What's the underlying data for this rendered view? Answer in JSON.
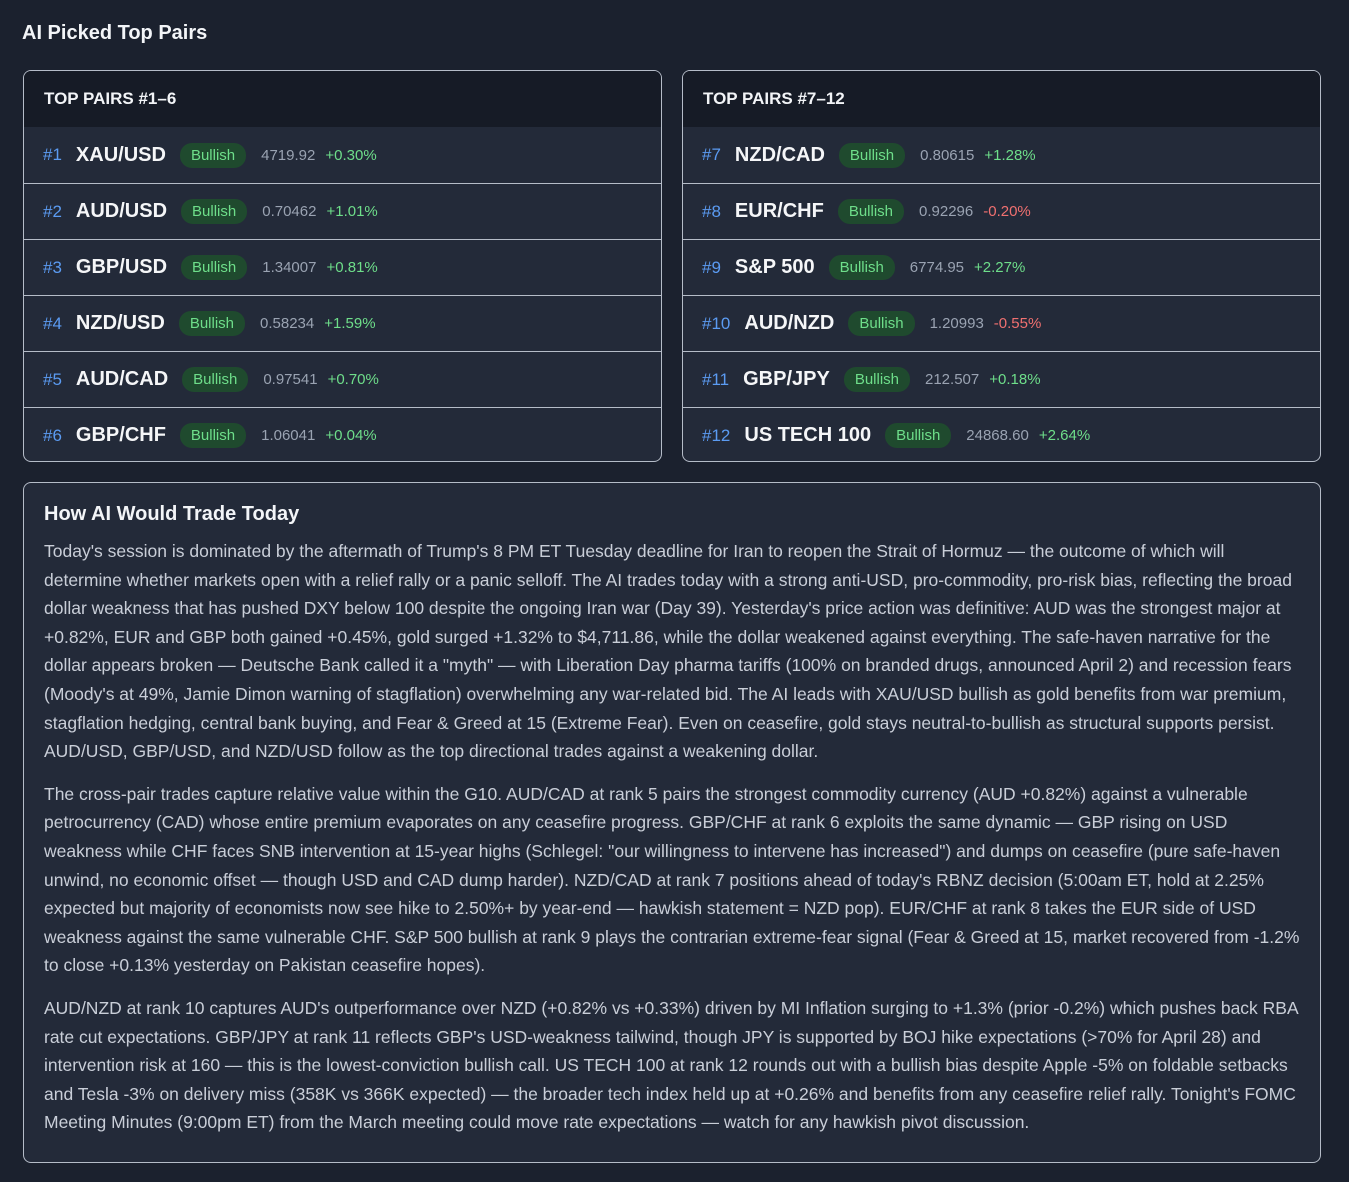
{
  "page_title": "AI Picked Top Pairs",
  "panels": [
    {
      "title": "TOP PAIRS #1–6",
      "rows": [
        {
          "rank": "#1",
          "pair": "XAU/USD",
          "bias": "Bullish",
          "price": "4719.92",
          "change": "+0.30%",
          "direction": "up"
        },
        {
          "rank": "#2",
          "pair": "AUD/USD",
          "bias": "Bullish",
          "price": "0.70462",
          "change": "+1.01%",
          "direction": "up"
        },
        {
          "rank": "#3",
          "pair": "GBP/USD",
          "bias": "Bullish",
          "price": "1.34007",
          "change": "+0.81%",
          "direction": "up"
        },
        {
          "rank": "#4",
          "pair": "NZD/USD",
          "bias": "Bullish",
          "price": "0.58234",
          "change": "+1.59%",
          "direction": "up"
        },
        {
          "rank": "#5",
          "pair": "AUD/CAD",
          "bias": "Bullish",
          "price": "0.97541",
          "change": "+0.70%",
          "direction": "up"
        },
        {
          "rank": "#6",
          "pair": "GBP/CHF",
          "bias": "Bullish",
          "price": "1.06041",
          "change": "+0.04%",
          "direction": "up"
        }
      ]
    },
    {
      "title": "TOP PAIRS #7–12",
      "rows": [
        {
          "rank": "#7",
          "pair": "NZD/CAD",
          "bias": "Bullish",
          "price": "0.80615",
          "change": "+1.28%",
          "direction": "up"
        },
        {
          "rank": "#8",
          "pair": "EUR/CHF",
          "bias": "Bullish",
          "price": "0.92296",
          "change": "-0.20%",
          "direction": "down"
        },
        {
          "rank": "#9",
          "pair": "S&P 500",
          "bias": "Bullish",
          "price": "6774.95",
          "change": "+2.27%",
          "direction": "up"
        },
        {
          "rank": "#10",
          "pair": "AUD/NZD",
          "bias": "Bullish",
          "price": "1.20993",
          "change": "-0.55%",
          "direction": "down"
        },
        {
          "rank": "#11",
          "pair": "GBP/JPY",
          "bias": "Bullish",
          "price": "212.507",
          "change": "+0.18%",
          "direction": "up"
        },
        {
          "rank": "#12",
          "pair": "US TECH 100",
          "bias": "Bullish",
          "price": "24868.60",
          "change": "+2.64%",
          "direction": "up"
        }
      ]
    }
  ],
  "colors": {
    "up": "#6ede8a",
    "down": "#f07070",
    "rank": "#5b9bf2",
    "badge_bg": "#1f4a2e"
  },
  "analysis": {
    "title": "How AI Would Trade Today",
    "paragraphs": [
      "Today's session is dominated by the aftermath of Trump's 8 PM ET Tuesday deadline for Iran to reopen the Strait of Hormuz — the outcome of which will determine whether markets open with a relief rally or a panic selloff. The AI trades today with a strong anti-USD, pro-commodity, pro-risk bias, reflecting the broad dollar weakness that has pushed DXY below 100 despite the ongoing Iran war (Day 39). Yesterday's price action was definitive: AUD was the strongest major at +0.82%, EUR and GBP both gained +0.45%, gold surged +1.32% to $4,711.86, while the dollar weakened against everything. The safe-haven narrative for the dollar appears broken — Deutsche Bank called it a \"myth\" — with Liberation Day pharma tariffs (100% on branded drugs, announced April 2) and recession fears (Moody's at 49%, Jamie Dimon warning of stagflation) overwhelming any war-related bid. The AI leads with XAU/USD bullish as gold benefits from war premium, stagflation hedging, central bank buying, and Fear & Greed at 15 (Extreme Fear). Even on ceasefire, gold stays neutral-to-bullish as structural supports persist. AUD/USD, GBP/USD, and NZD/USD follow as the top directional trades against a weakening dollar.",
      "The cross-pair trades capture relative value within the G10. AUD/CAD at rank 5 pairs the strongest commodity currency (AUD +0.82%) against a vulnerable petrocurrency (CAD) whose entire premium evaporates on any ceasefire progress. GBP/CHF at rank 6 exploits the same dynamic — GBP rising on USD weakness while CHF faces SNB intervention at 15-year highs (Schlegel: \"our willingness to intervene has increased\") and dumps on ceasefire (pure safe-haven unwind, no economic offset — though USD and CAD dump harder). NZD/CAD at rank 7 positions ahead of today's RBNZ decision (5:00am ET, hold at 2.25% expected but majority of economists now see hike to 2.50%+ by year-end — hawkish statement = NZD pop). EUR/CHF at rank 8 takes the EUR side of USD weakness against the same vulnerable CHF. S&P 500 bullish at rank 9 plays the contrarian extreme-fear signal (Fear & Greed at 15, market recovered from -1.2% to close +0.13% yesterday on Pakistan ceasefire hopes).",
      "AUD/NZD at rank 10 captures AUD's outperformance over NZD (+0.82% vs +0.33%) driven by MI Inflation surging to +1.3% (prior -0.2%) which pushes back RBA rate cut expectations. GBP/JPY at rank 11 reflects GBP's USD-weakness tailwind, though JPY is supported by BOJ hike expectations (>70% for April 28) and intervention risk at 160 — this is the lowest-conviction bullish call. US TECH 100 at rank 12 rounds out with a bullish bias despite Apple -5% on foldable setbacks and Tesla -3% on delivery miss (358K vs 366K expected) — the broader tech index held up at +0.26% and benefits from any ceasefire relief rally. Tonight's FOMC Meeting Minutes (9:00pm ET) from the March meeting could move rate expectations — watch for any hawkish pivot discussion."
    ]
  }
}
